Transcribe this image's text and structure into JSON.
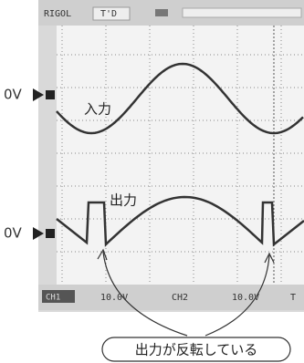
{
  "screen": {
    "header": {
      "brand": "RIGOL",
      "mode": "T'D"
    },
    "footer": {
      "ch1": "CH1",
      "ch1_scale": "10.0V",
      "ch2": "CH2",
      "ch2_scale": "10.0V",
      "timebase": "T"
    }
  },
  "labels": {
    "ch1_ground": "0V",
    "ch1_name": "入力",
    "ch2_ground": "0V",
    "ch2_name": "出力"
  },
  "callout": "出力が反転している"
}
